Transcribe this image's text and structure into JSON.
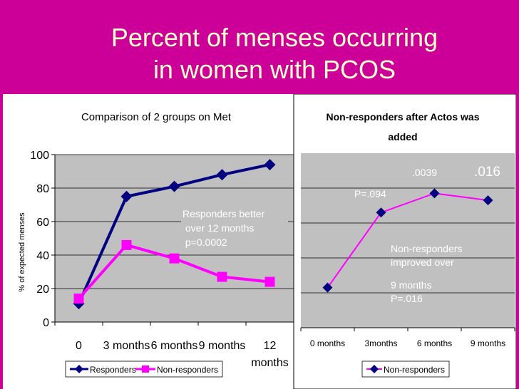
{
  "slide": {
    "title_line1": "Percent of menses occurring",
    "title_line2": "in women with PCOS"
  },
  "colors": {
    "background": "#cc0099",
    "title": "#ffffcc",
    "plot_area": "#c0c0c0",
    "navy": "#000080",
    "magenta": "#ff00ff",
    "annotation": "#ffffff"
  },
  "chart_data": [
    {
      "type": "line",
      "title": "Comparison of 2 groups on Met",
      "xlabel": "",
      "ylabel": "% of expected menses",
      "categories": [
        "0",
        "3 months",
        "6 months",
        "9 months",
        "12 months"
      ],
      "category_labels": [
        [
          "0"
        ],
        [
          "3 months"
        ],
        [
          "6 months"
        ],
        [
          "9 months"
        ],
        [
          "12",
          "months"
        ]
      ],
      "ylim": [
        0,
        100
      ],
      "yticks": [
        0,
        20,
        40,
        60,
        80,
        100
      ],
      "grid": true,
      "series": [
        {
          "name": "Responders",
          "color": "#000080",
          "marker": "diamond",
          "values": [
            11,
            75,
            81,
            88,
            94
          ]
        },
        {
          "name": "Non-responders",
          "color": "#ff00ff",
          "marker": "square",
          "values": [
            14,
            46,
            38,
            27,
            24
          ]
        }
      ],
      "annotations": [
        "Responders better",
        " over 12 months",
        " p=0.0002"
      ],
      "legend": "bottom"
    },
    {
      "type": "line",
      "title_lines": [
        "Non-responders after Actos was",
        "added"
      ],
      "xlabel": "",
      "ylabel": "",
      "categories": [
        "0 months",
        "3months",
        "6 months",
        "9 months"
      ],
      "ylim": [
        0,
        100
      ],
      "grid": true,
      "series": [
        {
          "name": "Non-responders",
          "color": "#000080",
          "line_color": "#ff00ff",
          "marker": "diamond",
          "values": [
            23,
            66,
            77,
            73
          ]
        }
      ],
      "point_labels": [
        {
          "text": "P=.094",
          "size": "small"
        },
        {
          "text": ".0039",
          "size": "small"
        },
        {
          "text": ".016",
          "size": "large"
        }
      ],
      "annotations": [
        "Non-responders",
        "improved over",
        "9 months",
        "P=.016"
      ],
      "legend": "bottom"
    }
  ]
}
